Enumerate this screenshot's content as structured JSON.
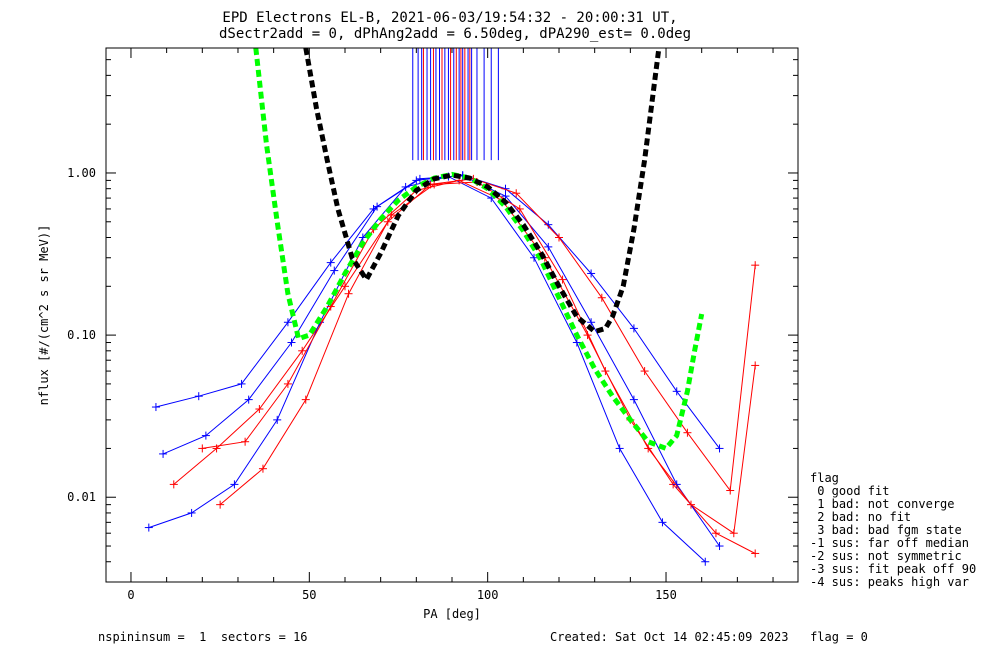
{
  "chart_data": {
    "type": "line",
    "title": "EPD Electrons EL-B, 2021-06-03/19:54:32 - 20:00:31 UT,",
    "subtitle": "dSectr2add = 0, dPhAng2add = 6.50deg, dPA290_est=   0.0deg",
    "xlabel": "PA [deg]",
    "ylabel": "nflux [#/(cm^2 s sr MeV)]",
    "xlim": [
      -7,
      187
    ],
    "ylim": [
      0.003,
      5.9
    ],
    "yscale": "log",
    "x_ticks": [
      {
        "value": 0,
        "label": "0"
      },
      {
        "value": 50,
        "label": "50"
      },
      {
        "value": 100,
        "label": "100"
      },
      {
        "value": 150,
        "label": "150"
      }
    ],
    "y_ticks": [
      {
        "value": 0.01,
        "label": "0.01"
      },
      {
        "value": 0.1,
        "label": "0.10"
      },
      {
        "value": 1.0,
        "label": "1.00"
      }
    ],
    "colors": {
      "series_a": "#0000ff",
      "series_b": "#ff0000",
      "fit_green": "#00ff00",
      "fit_black": "#000000"
    },
    "series": [
      {
        "color": "#0000ff",
        "marker": "+",
        "x": [
          7,
          19,
          31,
          44,
          56,
          68,
          80,
          93,
          105,
          117,
          129,
          141,
          153,
          165
        ],
        "y": [
          0.036,
          0.042,
          0.05,
          0.12,
          0.28,
          0.6,
          0.9,
          0.97,
          0.8,
          0.48,
          0.24,
          0.11,
          0.045,
          0.02
        ]
      },
      {
        "color": "#ff0000",
        "marker": "+",
        "x": [
          12,
          24,
          36,
          48,
          60,
          72,
          84,
          96,
          108,
          120,
          132,
          144,
          156,
          168,
          175
        ],
        "y": [
          0.012,
          0.02,
          0.035,
          0.08,
          0.2,
          0.5,
          0.85,
          0.92,
          0.75,
          0.4,
          0.17,
          0.06,
          0.025,
          0.011,
          0.27
        ]
      },
      {
        "color": "#0000ff",
        "marker": "+",
        "x": [
          5,
          17,
          29,
          41,
          53,
          65,
          77,
          89,
          101,
          113,
          125,
          137,
          149,
          161
        ],
        "y": [
          0.0065,
          0.008,
          0.012,
          0.03,
          0.12,
          0.4,
          0.82,
          0.95,
          0.7,
          0.3,
          0.09,
          0.02,
          0.007,
          0.004
        ]
      },
      {
        "color": "#ff0000",
        "marker": "+",
        "x": [
          20,
          32,
          44,
          56,
          68,
          80,
          92,
          104,
          116,
          128,
          140,
          152,
          164,
          175
        ],
        "y": [
          0.02,
          0.022,
          0.05,
          0.15,
          0.45,
          0.78,
          0.9,
          0.68,
          0.3,
          0.1,
          0.03,
          0.012,
          0.006,
          0.0045
        ]
      },
      {
        "color": "#0000ff",
        "marker": "+",
        "x": [
          9,
          21,
          33,
          45,
          57,
          69,
          81,
          93,
          105,
          117,
          129,
          141,
          153,
          165
        ],
        "y": [
          0.0185,
          0.024,
          0.04,
          0.09,
          0.25,
          0.62,
          0.92,
          0.96,
          0.72,
          0.35,
          0.12,
          0.04,
          0.012,
          0.005
        ]
      },
      {
        "color": "#ff0000",
        "marker": "+",
        "x": [
          25,
          37,
          49,
          61,
          73,
          85,
          97,
          109,
          121,
          133,
          145,
          157,
          169,
          175
        ],
        "y": [
          0.009,
          0.015,
          0.04,
          0.18,
          0.55,
          0.85,
          0.88,
          0.6,
          0.22,
          0.06,
          0.02,
          0.009,
          0.006,
          0.065
        ]
      }
    ],
    "fits": [
      {
        "name": "",
        "color": "#00ff00",
        "style": "dashed",
        "x": [
          35,
          38,
          41,
          44,
          47,
          50,
          55,
          60,
          65,
          70,
          75,
          80,
          85,
          90,
          95,
          100,
          105,
          110,
          115,
          120,
          125,
          130,
          135,
          140,
          145,
          150,
          153,
          156,
          158,
          160
        ],
        "y": [
          5.9,
          1.5,
          0.5,
          0.18,
          0.095,
          0.1,
          0.15,
          0.24,
          0.37,
          0.52,
          0.68,
          0.82,
          0.93,
          0.98,
          0.93,
          0.8,
          0.62,
          0.44,
          0.29,
          0.17,
          0.1,
          0.062,
          0.042,
          0.03,
          0.022,
          0.02,
          0.024,
          0.045,
          0.08,
          0.135
        ]
      },
      {
        "name": "",
        "color": "#000000",
        "style": "dashed",
        "x": [
          49,
          52,
          55,
          58,
          62,
          66,
          70,
          75,
          80,
          85,
          90,
          95,
          100,
          105,
          110,
          115,
          120,
          125,
          130,
          133,
          135,
          138,
          141,
          144,
          148
        ],
        "y": [
          5.9,
          2.5,
          1.2,
          0.6,
          0.3,
          0.22,
          0.32,
          0.55,
          0.78,
          0.92,
          0.97,
          0.93,
          0.82,
          0.66,
          0.48,
          0.32,
          0.2,
          0.13,
          0.105,
          0.11,
          0.13,
          0.2,
          0.45,
          1.2,
          5.9
        ]
      }
    ],
    "vertical_lines": {
      "ymin": 1.2,
      "ymax": 5.9,
      "blue_x": [
        79,
        80.5,
        81.5,
        83,
        84,
        85.5,
        86.5,
        88,
        89,
        90.5,
        92,
        93,
        94.5,
        95.5,
        97,
        99,
        101,
        103
      ],
      "red_x": [
        82,
        84.8,
        87.2,
        89.6,
        91.2,
        92.5,
        93.6,
        95
      ]
    }
  },
  "legend": {
    "title": "flag",
    "items": [
      " 0 good fit",
      " 1 bad: not converge",
      " 2 bad: no fit",
      " 3 bad: bad fgm state",
      "-1 sus: far off median",
      "-2 sus: not symmetric",
      "-3 sus: fit peak off 90",
      "-4 sus: peaks high var"
    ]
  },
  "footer": {
    "left": "nspininsum =  1  sectors = 16",
    "right": "Created: Sat Oct 14 02:45:09 2023   flag = 0"
  }
}
